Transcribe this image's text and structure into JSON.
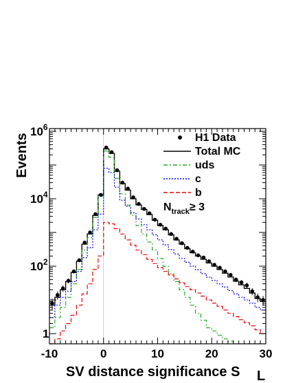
{
  "chart_data": {
    "type": "line",
    "title": "",
    "xlabel": "SV distance significance S",
    "xlabel_subscript": "L",
    "ylabel": "Events",
    "xlim": [
      -10,
      30
    ],
    "ylim": [
      0.5,
      1200000
    ],
    "yscale": "log",
    "x_ticks": [
      -10,
      0,
      10,
      20,
      30
    ],
    "y_ticks": [
      {
        "value": 1,
        "base": "1",
        "exp": ""
      },
      {
        "value": 100,
        "base": "10",
        "exp": "2"
      },
      {
        "value": 10000,
        "base": "10",
        "exp": "4"
      },
      {
        "value": 1000000,
        "base": "10",
        "exp": "6"
      }
    ],
    "grid": false,
    "legend_position": "top-right",
    "annotation": {
      "main": "N",
      "sub": "track",
      "rest": "≥ 3"
    },
    "bin_edges": [
      -10,
      -9,
      -8,
      -7,
      -6,
      -5,
      -4,
      -3,
      -2,
      -1,
      0,
      1,
      2,
      3,
      4,
      5,
      6,
      7,
      8,
      9,
      10,
      11,
      12,
      13,
      14,
      15,
      16,
      17,
      18,
      19,
      20,
      21,
      22,
      23,
      24,
      25,
      26,
      27,
      28,
      29,
      30
    ],
    "data": {
      "name": "H1 Data",
      "color": "#000000",
      "values": [
        8,
        14,
        22,
        37,
        70,
        150,
        500,
        1000,
        3500,
        13000,
        330000,
        240000,
        70000,
        30000,
        20000,
        11000,
        7000,
        5000,
        3700,
        2400,
        1700,
        1300,
        900,
        650,
        480,
        350,
        270,
        210,
        180,
        140,
        110,
        90,
        70,
        55,
        40,
        33,
        27,
        18,
        12,
        10
      ]
    },
    "series": [
      {
        "name": "Total MC",
        "color": "#000000",
        "dash": "",
        "values": [
          7,
          12,
          20,
          35,
          65,
          140,
          450,
          900,
          3200,
          13000,
          300000,
          220000,
          65000,
          28000,
          18000,
          10000,
          6600,
          4800,
          3400,
          2300,
          1600,
          1200,
          850,
          600,
          450,
          330,
          250,
          200,
          160,
          125,
          100,
          80,
          62,
          48,
          36,
          28,
          22,
          16,
          11,
          9
        ]
      },
      {
        "name": "uds",
        "color": "#22aa22",
        "dash": "6 3 2 3",
        "values": [
          1.5,
          3,
          6,
          12,
          30,
          80,
          300,
          700,
          2800,
          12000,
          260000,
          170000,
          40000,
          14000,
          6500,
          3200,
          1600,
          900,
          520,
          300,
          170,
          100,
          60,
          35,
          20,
          12,
          7,
          4,
          2.5,
          1.5,
          1.2,
          0.9,
          0.7,
          0.6,
          0.5,
          0.5,
          0.5,
          0.5,
          0.5,
          0.5
        ]
      },
      {
        "name": "c",
        "color": "#0000dd",
        "dash": "2 2",
        "values": [
          3,
          7,
          12,
          18,
          35,
          70,
          180,
          350,
          1200,
          3500,
          80000,
          60000,
          22000,
          9000,
          6000,
          3800,
          2500,
          1700,
          1200,
          850,
          600,
          430,
          310,
          230,
          170,
          130,
          100,
          78,
          60,
          47,
          38,
          30,
          24,
          19,
          15,
          12,
          10,
          8,
          6,
          5
        ]
      },
      {
        "name": "b",
        "color": "#ee0000",
        "dash": "6 3",
        "values": [
          0.5,
          0.7,
          1.2,
          2,
          3.5,
          7,
          15,
          30,
          80,
          200,
          2000,
          1800,
          1300,
          900,
          600,
          420,
          300,
          220,
          160,
          120,
          90,
          70,
          55,
          42,
          32,
          25,
          20,
          16,
          13,
          10,
          8,
          6.5,
          5,
          4,
          3.2,
          2.6,
          2.1,
          1.7,
          1.3,
          1
        ]
      }
    ]
  }
}
